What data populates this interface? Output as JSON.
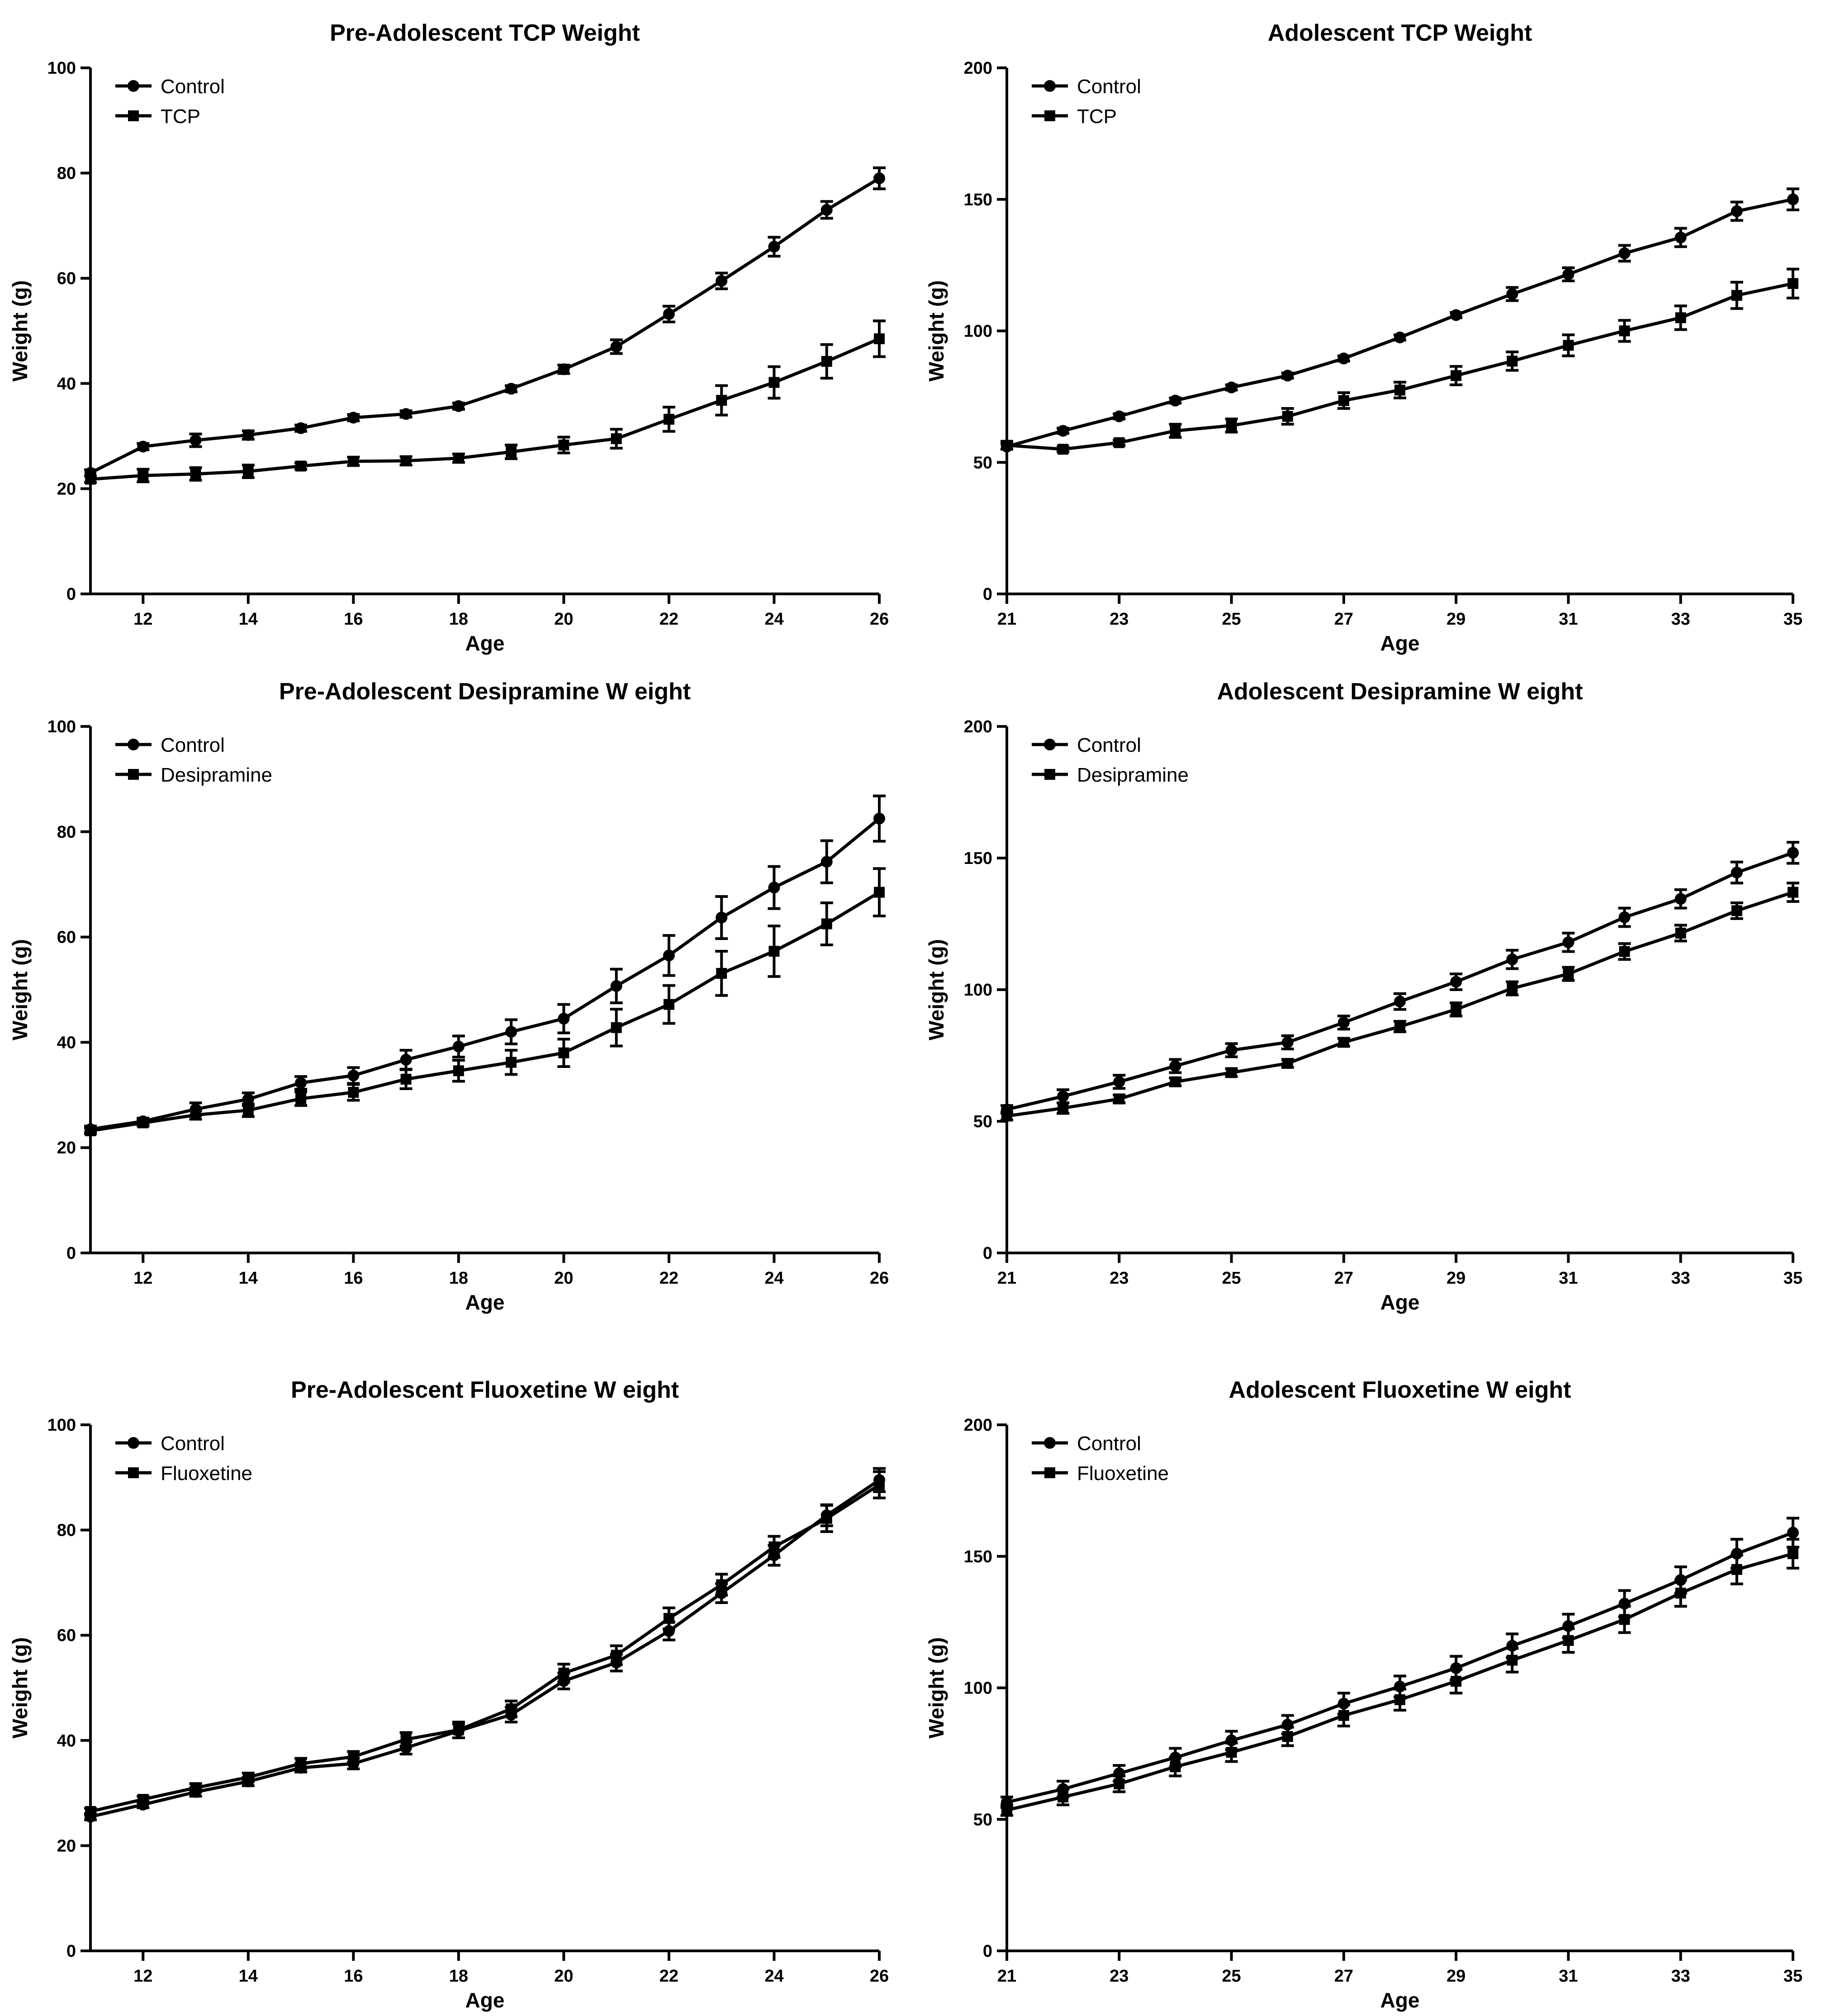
{
  "chart_data": [
    {
      "type": "line",
      "title": "Pre-Adolescent TCP Weight",
      "xlabel": "Age",
      "ylabel": "Weight (g)",
      "xlim": [
        11,
        26
      ],
      "ylim": [
        0,
        100
      ],
      "xticks": [
        12,
        14,
        16,
        18,
        20,
        22,
        24,
        26
      ],
      "yticks": [
        0,
        20,
        40,
        60,
        80,
        100
      ],
      "legend": "top-left",
      "x": [
        11,
        12,
        13,
        14,
        15,
        16,
        17,
        18,
        19,
        20,
        21,
        22,
        23,
        24,
        25,
        26
      ],
      "series": [
        {
          "name": "Control",
          "marker": "circle",
          "values": [
            23,
            28,
            29.2,
            30.2,
            31.5,
            33.5,
            34.2,
            35.7,
            39,
            42.7,
            47,
            53.2,
            59.5,
            66,
            73,
            79
          ],
          "errors": [
            0.6,
            0.6,
            1.2,
            0.8,
            0.6,
            0.6,
            0.6,
            0.6,
            0.6,
            0.8,
            1.3,
            1.5,
            1.5,
            1.8,
            1.6,
            2.0
          ]
        },
        {
          "name": "TCP",
          "marker": "square",
          "values": [
            21.8,
            22.5,
            22.8,
            23.3,
            24.3,
            25.2,
            25.3,
            25.8,
            27,
            28.3,
            29.5,
            33.2,
            36.8,
            40.2,
            44.2,
            48.5
          ],
          "errors": [
            0.6,
            1.2,
            1.2,
            1.2,
            0.6,
            0.8,
            0.8,
            0.8,
            1.3,
            1.5,
            1.8,
            2.3,
            2.8,
            3.0,
            3.2,
            3.4
          ]
        }
      ]
    },
    {
      "type": "line",
      "title": "Adolescent TCP Weight",
      "xlabel": "Age",
      "ylabel": "Weight (g)",
      "xlim": [
        21,
        35
      ],
      "ylim": [
        0,
        200
      ],
      "xticks": [
        21,
        23,
        25,
        27,
        29,
        31,
        33,
        35
      ],
      "yticks": [
        0,
        50,
        100,
        150,
        200
      ],
      "legend": "top-left",
      "x": [
        21,
        22,
        23,
        24,
        25,
        26,
        27,
        28,
        29,
        30,
        31,
        32,
        33,
        34,
        35
      ],
      "series": [
        {
          "name": "Control",
          "marker": "circle",
          "values": [
            56,
            62,
            67.5,
            73.5,
            78.5,
            83,
            89.5,
            97.5,
            106,
            114,
            121.5,
            129.5,
            135.5,
            145.5,
            150
          ],
          "errors": [
            1.0,
            1.0,
            1.0,
            1.0,
            1.0,
            1.0,
            1.0,
            1.0,
            1.0,
            2.5,
            2.5,
            3.0,
            3.5,
            3.5,
            4.0
          ]
        },
        {
          "name": "TCP",
          "marker": "square",
          "values": [
            56.5,
            55,
            57.5,
            62,
            64,
            67.5,
            73.5,
            77.5,
            83,
            88.5,
            94.5,
            100,
            105,
            113.5,
            118
          ],
          "errors": [
            1.5,
            1.0,
            1.0,
            2.5,
            2.5,
            3.0,
            3.0,
            3.0,
            3.5,
            3.5,
            4.0,
            4.0,
            4.5,
            5.0,
            5.5
          ]
        }
      ]
    },
    {
      "type": "line",
      "title": "Pre-Adolescent Desipramine W eight",
      "xlabel": "Age",
      "ylabel": "Weight (g)",
      "xlim": [
        11,
        26
      ],
      "ylim": [
        0,
        100
      ],
      "xticks": [
        12,
        14,
        16,
        18,
        20,
        22,
        24,
        26
      ],
      "yticks": [
        0,
        20,
        40,
        60,
        80,
        100
      ],
      "legend": "top-left",
      "x": [
        11,
        12,
        13,
        14,
        15,
        16,
        17,
        18,
        19,
        20,
        21,
        22,
        23,
        24,
        25,
        26
      ],
      "series": [
        {
          "name": "Control",
          "marker": "circle",
          "values": [
            23.5,
            25,
            27.3,
            29.2,
            32.3,
            33.7,
            36.7,
            39.2,
            42,
            44.5,
            50.7,
            56.5,
            63.7,
            69.4,
            74.3,
            82.5
          ],
          "errors": [
            0.6,
            0.6,
            1.2,
            1.2,
            1.2,
            1.5,
            1.8,
            2.0,
            2.3,
            2.7,
            3.2,
            3.8,
            4.0,
            4.0,
            4.0,
            4.3
          ]
        },
        {
          "name": "Desipramine",
          "marker": "square",
          "values": [
            23.2,
            24.7,
            26.2,
            27.1,
            29.3,
            30.5,
            33,
            34.6,
            36.2,
            38,
            42.8,
            47.2,
            53.1,
            57.3,
            62.5,
            68.5
          ],
          "errors": [
            0.6,
            0.6,
            0.8,
            1.2,
            1.3,
            1.5,
            1.8,
            2.0,
            2.3,
            2.6,
            3.5,
            3.6,
            4.2,
            4.8,
            4.0,
            4.5
          ]
        }
      ]
    },
    {
      "type": "line",
      "title": "Adolescent Desipramine W eight",
      "xlabel": "Age",
      "ylabel": "Weight (g)",
      "xlim": [
        21,
        35
      ],
      "ylim": [
        0,
        200
      ],
      "xticks": [
        21,
        23,
        25,
        27,
        29,
        31,
        33,
        35
      ],
      "yticks": [
        0,
        50,
        100,
        150,
        200
      ],
      "legend": "top-left",
      "x": [
        21,
        22,
        23,
        24,
        25,
        26,
        27,
        28,
        29,
        30,
        31,
        32,
        33,
        34,
        35
      ],
      "series": [
        {
          "name": "Control",
          "marker": "circle",
          "values": [
            54.5,
            59.5,
            65,
            71,
            77,
            80,
            87.5,
            95.5,
            103,
            111.5,
            118,
            127.5,
            134.5,
            144.5,
            152
          ],
          "errors": [
            1.5,
            2.5,
            2.5,
            2.5,
            2.5,
            2.5,
            2.5,
            3.0,
            3.0,
            3.5,
            3.5,
            3.5,
            3.5,
            4.0,
            4.0
          ]
        },
        {
          "name": "Desipramine",
          "marker": "square",
          "values": [
            52,
            55,
            58.5,
            65,
            68.5,
            72,
            80,
            86,
            92.5,
            100.5,
            106,
            114.5,
            121.5,
            130,
            137
          ],
          "errors": [
            1.5,
            2.0,
            1.5,
            1.5,
            1.5,
            1.5,
            1.5,
            2.0,
            2.5,
            2.5,
            2.5,
            3.0,
            3.0,
            3.0,
            3.5
          ]
        }
      ]
    },
    {
      "type": "line",
      "title": "Pre-Adolescent Fluoxetine W eight",
      "xlabel": "Age",
      "ylabel": "Weight (g)",
      "xlim": [
        11,
        26
      ],
      "ylim": [
        0,
        100
      ],
      "xticks": [
        12,
        14,
        16,
        18,
        20,
        22,
        24,
        26
      ],
      "yticks": [
        0,
        20,
        40,
        60,
        80,
        100
      ],
      "legend": "top-left",
      "x": [
        11,
        12,
        13,
        14,
        15,
        16,
        17,
        18,
        19,
        20,
        21,
        22,
        23,
        24,
        25,
        26
      ],
      "series": [
        {
          "name": "Control",
          "marker": "circle",
          "values": [
            25.5,
            27.8,
            30.2,
            32.2,
            34.8,
            35.6,
            38.6,
            41.8,
            44.9,
            51.3,
            54.8,
            60.8,
            68,
            75.2,
            82.8,
            89.5
          ],
          "errors": [
            0.6,
            0.6,
            0.8,
            0.8,
            0.8,
            1.0,
            1.2,
            1.3,
            1.4,
            1.5,
            1.6,
            1.7,
            1.8,
            1.9,
            2.0,
            2.2
          ]
        },
        {
          "name": "Fluoxetine",
          "marker": "square",
          "values": [
            26.5,
            28.8,
            31,
            33,
            35.6,
            36.9,
            40.2,
            42,
            46,
            52.8,
            56.2,
            63.2,
            69.6,
            76.8,
            82.2,
            88.6
          ],
          "errors": [
            0.6,
            0.6,
            0.8,
            0.8,
            1.0,
            1.0,
            1.3,
            1.5,
            1.5,
            1.7,
            1.8,
            2.0,
            2.0,
            2.0,
            2.5,
            2.5
          ]
        }
      ]
    },
    {
      "type": "line",
      "title": "Adolescent Fluoxetine W eight",
      "xlabel": "Age",
      "ylabel": "Weight (g)",
      "xlim": [
        21,
        35
      ],
      "ylim": [
        0,
        200
      ],
      "xticks": [
        21,
        23,
        25,
        27,
        29,
        31,
        33,
        35
      ],
      "yticks": [
        0,
        50,
        100,
        150,
        200
      ],
      "legend": "top-left",
      "x": [
        21,
        22,
        23,
        24,
        25,
        26,
        27,
        28,
        29,
        30,
        31,
        32,
        33,
        34,
        35
      ],
      "series": [
        {
          "name": "Control",
          "marker": "circle",
          "values": [
            56.5,
            61.5,
            67.5,
            73.5,
            80,
            86,
            94,
            100.5,
            107.5,
            116,
            123.5,
            132,
            141,
            151,
            159
          ],
          "errors": [
            2.0,
            3.0,
            3.0,
            3.5,
            3.5,
            3.5,
            4.0,
            4.0,
            4.5,
            4.5,
            4.5,
            5.0,
            5.0,
            5.5,
            5.5
          ]
        },
        {
          "name": "Fluoxetine",
          "marker": "square",
          "values": [
            53.5,
            58.5,
            63.5,
            70,
            75.5,
            81.5,
            89.5,
            95.5,
            102.5,
            110.5,
            118,
            126,
            136,
            145,
            151
          ],
          "errors": [
            2.0,
            3.0,
            3.0,
            3.5,
            3.5,
            3.5,
            4.0,
            4.0,
            4.5,
            4.5,
            4.5,
            5.0,
            5.0,
            5.5,
            5.5
          ]
        }
      ]
    }
  ]
}
